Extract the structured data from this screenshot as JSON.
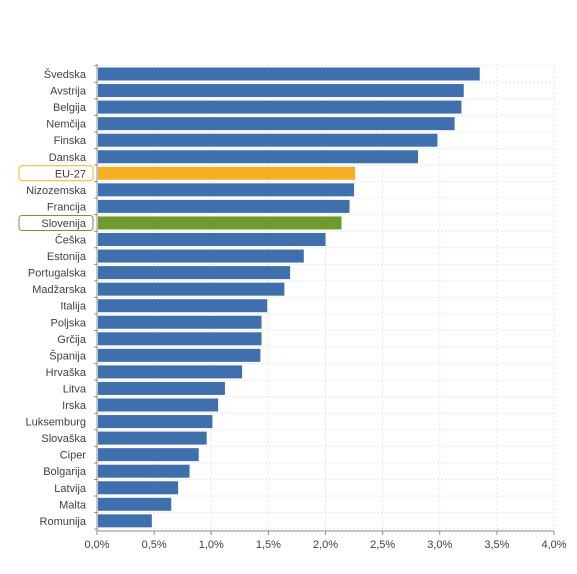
{
  "chart_data": {
    "type": "bar",
    "orientation": "horizontal",
    "title": "",
    "xlabel": "",
    "ylabel": "",
    "categories": [
      "Švedska",
      "Avstrija",
      "Belgija",
      "Nemčija",
      "Finska",
      "Danska",
      "EU-27",
      "Nizozemska",
      "Francija",
      "Slovenija",
      "Češka",
      "Estonija",
      "Portugalska",
      "Madžarska",
      "Italija",
      "Poljska",
      "Grčija",
      "Španija",
      "Hrvaška",
      "Litva",
      "Irska",
      "Luksemburg",
      "Slovaška",
      "Ciper",
      "Bolgarija",
      "Latvija",
      "Malta",
      "Romunija"
    ],
    "values": [
      3.35,
      3.21,
      3.19,
      3.13,
      2.98,
      2.81,
      2.26,
      2.25,
      2.21,
      2.14,
      2.0,
      1.81,
      1.69,
      1.64,
      1.49,
      1.44,
      1.44,
      1.43,
      1.27,
      1.12,
      1.06,
      1.01,
      0.96,
      0.89,
      0.81,
      0.71,
      0.65,
      0.48
    ],
    "xlim": [
      0,
      4.0
    ],
    "xticks": [
      0,
      0.5,
      1.0,
      1.5,
      2.0,
      2.5,
      3.0,
      3.5,
      4.0
    ],
    "xtick_labels": [
      "0,0%",
      "0,5%",
      "1,0%",
      "1,5%",
      "2,0%",
      "2,5%",
      "3,0%",
      "3,5%",
      "4,0%"
    ],
    "grid": true,
    "colors": {
      "default": "#3f6fad",
      "highlights": {
        "EU-27": "#f6b026",
        "Slovenija": "#6e9a2e"
      }
    },
    "label_boxes": [
      "EU-27",
      "Slovenija"
    ]
  }
}
